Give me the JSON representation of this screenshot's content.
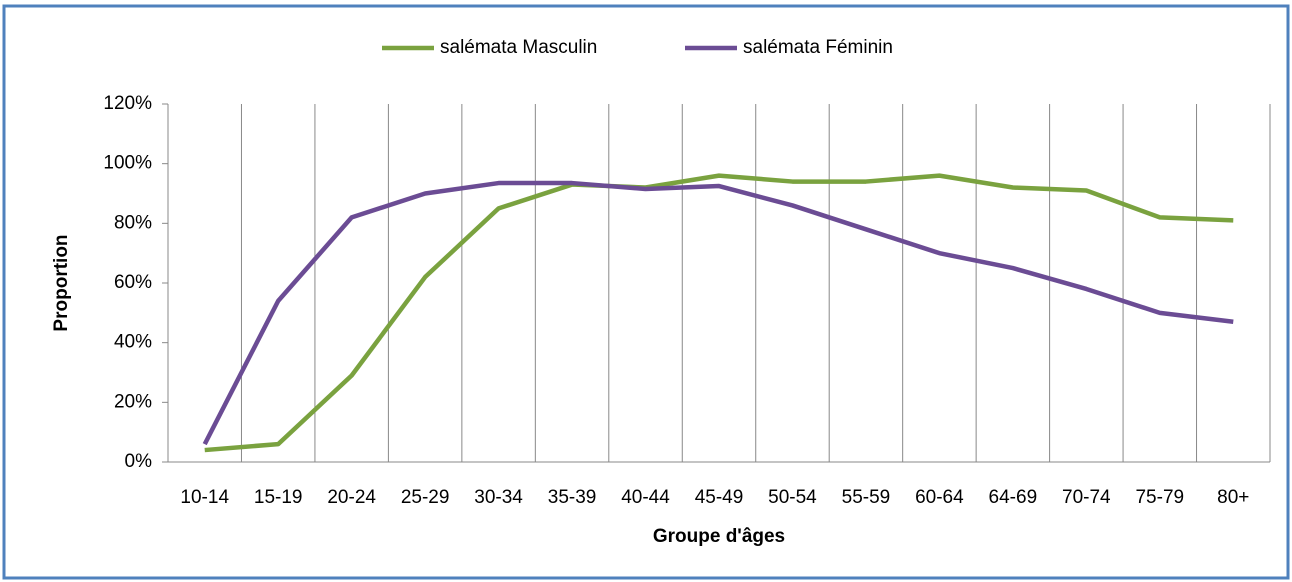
{
  "chart_data": {
    "type": "line",
    "x_label": "Groupe d'âges",
    "y_label": "Proportion",
    "categories": [
      "10-14",
      "15-19",
      "20-24",
      "25-29",
      "30-34",
      "35-39",
      "40-44",
      "45-49",
      "50-54",
      "55-59",
      "60-64",
      "64-69",
      "70-74",
      "75-79",
      "80+"
    ],
    "series": [
      {
        "name": "salémata Masculin",
        "color": "#7aa23f",
        "values": [
          4,
          6,
          29,
          62,
          85,
          93,
          92,
          96,
          94,
          94,
          96,
          92,
          91,
          82,
          81
        ]
      },
      {
        "name": "salémata Féminin",
        "color": "#6b4c94",
        "values": [
          6,
          54,
          82,
          90,
          93.5,
          93.5,
          91.5,
          92.5,
          86,
          78,
          70,
          65,
          58,
          50,
          47
        ]
      }
    ],
    "ylim": [
      0,
      120
    ],
    "yticks": [
      {
        "value": 0,
        "label": "0%"
      },
      {
        "value": 20,
        "label": "20%"
      },
      {
        "value": 40,
        "label": "40%"
      },
      {
        "value": 60,
        "label": "60%"
      },
      {
        "value": 80,
        "label": "80%"
      },
      {
        "value": 100,
        "label": "100%"
      },
      {
        "value": 120,
        "label": "120%"
      }
    ],
    "legend": "top"
  }
}
